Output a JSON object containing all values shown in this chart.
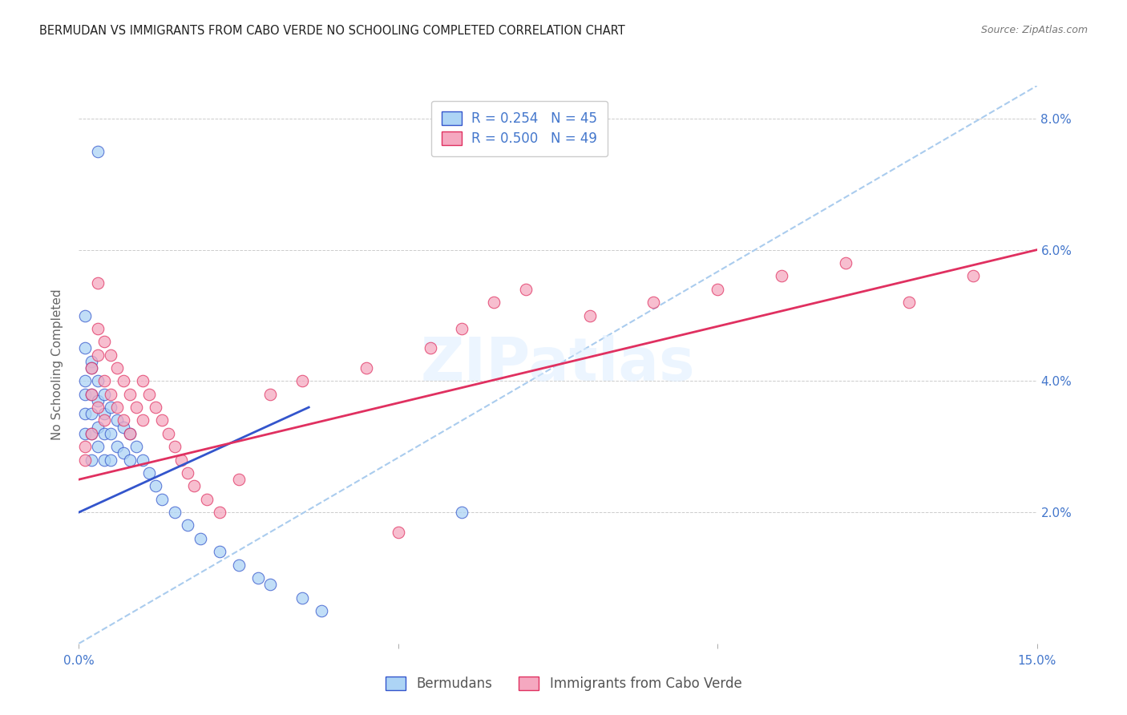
{
  "title": "BERMUDAN VS IMMIGRANTS FROM CABO VERDE NO SCHOOLING COMPLETED CORRELATION CHART",
  "source": "Source: ZipAtlas.com",
  "ylabel": "No Schooling Completed",
  "xlim": [
    0,
    0.15
  ],
  "ylim": [
    0,
    0.085
  ],
  "watermark": "ZIPatlas",
  "color_blue": "#ADD4F5",
  "color_pink": "#F5A8C0",
  "line_blue": "#3355CC",
  "line_pink": "#E03060",
  "line_dashed_color": "#AACCEE",
  "axis_color": "#4477CC",
  "title_color": "#222222",
  "blue_x": [
    0.003,
    0.001,
    0.001,
    0.002,
    0.001,
    0.001,
    0.001,
    0.001,
    0.002,
    0.002,
    0.002,
    0.002,
    0.002,
    0.003,
    0.003,
    0.003,
    0.003,
    0.004,
    0.004,
    0.004,
    0.004,
    0.005,
    0.005,
    0.005,
    0.006,
    0.006,
    0.007,
    0.007,
    0.008,
    0.008,
    0.009,
    0.01,
    0.011,
    0.012,
    0.013,
    0.015,
    0.017,
    0.019,
    0.022,
    0.025,
    0.028,
    0.03,
    0.035,
    0.038,
    0.06
  ],
  "blue_y": [
    0.075,
    0.05,
    0.045,
    0.043,
    0.04,
    0.038,
    0.035,
    0.032,
    0.042,
    0.038,
    0.035,
    0.032,
    0.028,
    0.04,
    0.037,
    0.033,
    0.03,
    0.038,
    0.035,
    0.032,
    0.028,
    0.036,
    0.032,
    0.028,
    0.034,
    0.03,
    0.033,
    0.029,
    0.032,
    0.028,
    0.03,
    0.028,
    0.026,
    0.024,
    0.022,
    0.02,
    0.018,
    0.016,
    0.014,
    0.012,
    0.01,
    0.009,
    0.007,
    0.005,
    0.02
  ],
  "pink_x": [
    0.001,
    0.001,
    0.002,
    0.002,
    0.002,
    0.003,
    0.003,
    0.003,
    0.004,
    0.004,
    0.004,
    0.005,
    0.005,
    0.006,
    0.006,
    0.007,
    0.007,
    0.008,
    0.008,
    0.009,
    0.01,
    0.01,
    0.011,
    0.012,
    0.013,
    0.014,
    0.015,
    0.016,
    0.017,
    0.018,
    0.02,
    0.022,
    0.025,
    0.03,
    0.035,
    0.045,
    0.055,
    0.06,
    0.065,
    0.07,
    0.08,
    0.09,
    0.1,
    0.11,
    0.12,
    0.13,
    0.14,
    0.003,
    0.05
  ],
  "pink_y": [
    0.03,
    0.028,
    0.042,
    0.038,
    0.032,
    0.048,
    0.044,
    0.036,
    0.046,
    0.04,
    0.034,
    0.044,
    0.038,
    0.042,
    0.036,
    0.04,
    0.034,
    0.038,
    0.032,
    0.036,
    0.04,
    0.034,
    0.038,
    0.036,
    0.034,
    0.032,
    0.03,
    0.028,
    0.026,
    0.024,
    0.022,
    0.02,
    0.025,
    0.038,
    0.04,
    0.042,
    0.045,
    0.048,
    0.052,
    0.054,
    0.05,
    0.052,
    0.054,
    0.056,
    0.058,
    0.052,
    0.056,
    0.055,
    0.017
  ],
  "blue_reg": [
    0.0,
    0.02,
    0.036,
    0.036
  ],
  "pink_reg": [
    0.0,
    0.025,
    0.15,
    0.06
  ],
  "dash_reg": [
    0.0,
    0.0,
    0.15,
    0.085
  ]
}
